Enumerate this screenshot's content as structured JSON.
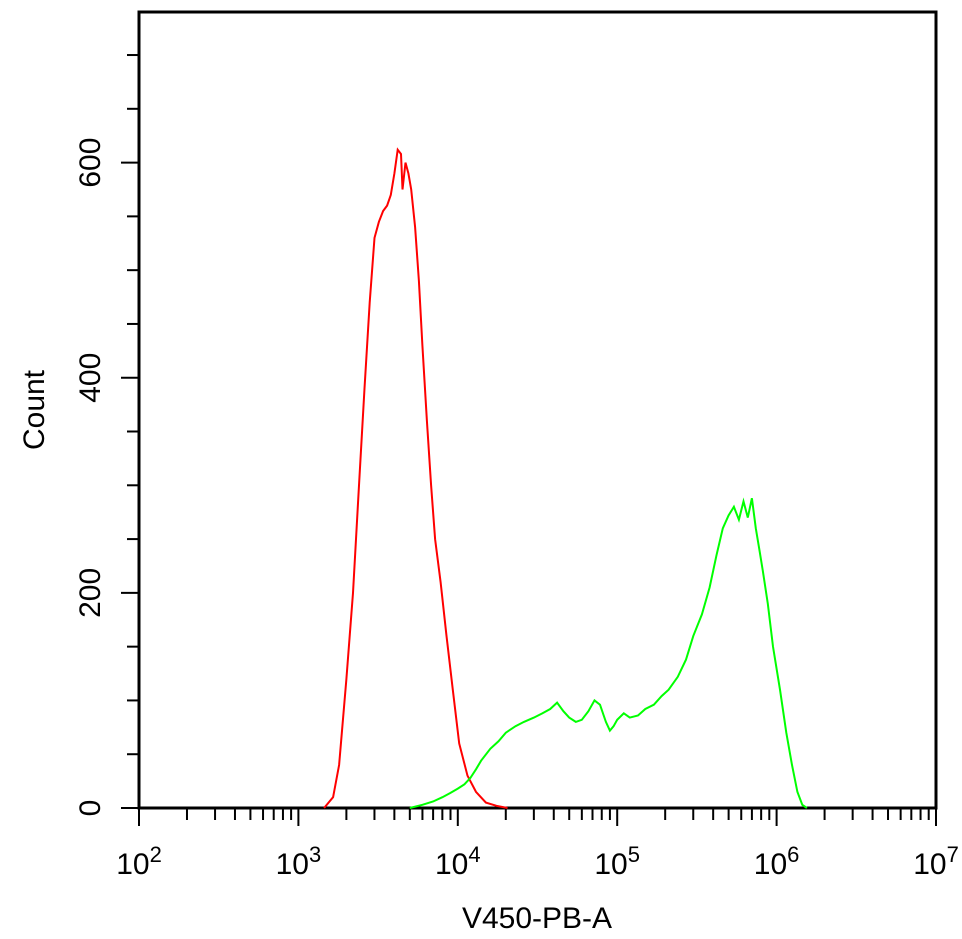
{
  "chart_data": {
    "type": "line",
    "title": "",
    "xlabel": "V450-PB-A",
    "ylabel": "Count",
    "x_scale": "log",
    "xlim": [
      100,
      10000000
    ],
    "ylim": [
      0,
      740
    ],
    "x_ticks": [
      {
        "base": "10",
        "exp": "2"
      },
      {
        "base": "10",
        "exp": "3"
      },
      {
        "base": "10",
        "exp": "4"
      },
      {
        "base": "10",
        "exp": "5"
      },
      {
        "base": "10",
        "exp": "6"
      },
      {
        "base": "10",
        "exp": "7"
      }
    ],
    "x_tick_values": [
      100,
      1000,
      10000,
      100000,
      1000000,
      10000000
    ],
    "y_ticks": [
      "0",
      "200",
      "400",
      "600"
    ],
    "y_tick_values": [
      0,
      200,
      400,
      600
    ],
    "grid": false,
    "series": [
      {
        "color": "#ff0000",
        "x": [
          1450,
          1650,
          1800,
          2000,
          2200,
          2400,
          2600,
          2800,
          3000,
          3200,
          3400,
          3600,
          3800,
          4000,
          4200,
          4400,
          4500,
          4700,
          4900,
          5100,
          5400,
          5700,
          6000,
          6400,
          6800,
          7200,
          7800,
          8500,
          9300,
          10200,
          11500,
          13000,
          15000,
          17500,
          20500
        ],
        "y": [
          0,
          10,
          40,
          120,
          200,
          300,
          390,
          470,
          530,
          545,
          555,
          560,
          570,
          590,
          612,
          608,
          575,
          600,
          590,
          575,
          540,
          490,
          430,
          360,
          300,
          250,
          210,
          160,
          110,
          60,
          30,
          15,
          5,
          2,
          0
        ]
      },
      {
        "color": "#00ff00",
        "x": [
          5000,
          6000,
          7000,
          8000,
          9000,
          10000,
          11000,
          12000,
          13000,
          14000,
          16000,
          18000,
          20000,
          23000,
          26000,
          30000,
          34000,
          38000,
          42000,
          46000,
          50000,
          55000,
          60000,
          66000,
          72000,
          78000,
          85000,
          90000,
          95000,
          100000,
          110000,
          120000,
          135000,
          150000,
          170000,
          190000,
          210000,
          240000,
          270000,
          300000,
          340000,
          380000,
          420000,
          460000,
          500000,
          540000,
          580000,
          620000,
          660000,
          700000,
          740000,
          780000,
          820000,
          880000,
          950000,
          1050000,
          1150000,
          1250000,
          1350000,
          1450000,
          1550000
        ],
        "y": [
          0,
          3,
          6,
          10,
          14,
          18,
          22,
          28,
          36,
          44,
          55,
          62,
          70,
          76,
          80,
          84,
          88,
          92,
          98,
          90,
          84,
          80,
          82,
          90,
          100,
          96,
          80,
          72,
          76,
          82,
          88,
          84,
          86,
          92,
          96,
          104,
          110,
          122,
          138,
          160,
          180,
          205,
          235,
          260,
          272,
          280,
          268,
          285,
          270,
          288,
          260,
          240,
          220,
          190,
          150,
          110,
          70,
          40,
          15,
          3,
          0
        ]
      }
    ]
  }
}
